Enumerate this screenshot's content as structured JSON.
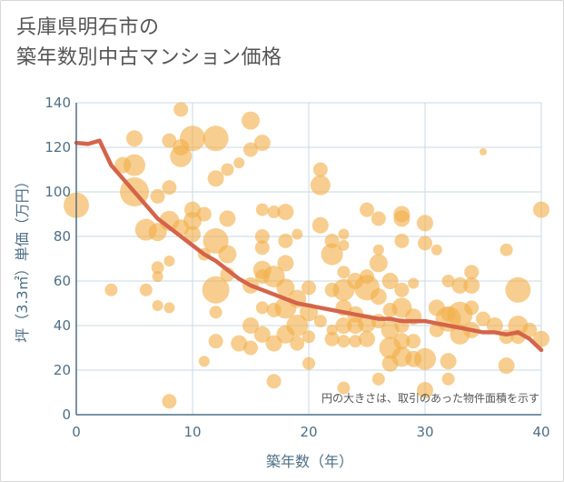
{
  "title": {
    "line1": "兵庫県明石市の",
    "line2": "築年数別中古マンション価格"
  },
  "chart_data": {
    "type": "scatter",
    "xlabel": "築年数（年）",
    "ylabel": "坪（3.3㎡）単価（万円）",
    "xlim": [
      0,
      40
    ],
    "ylim": [
      0,
      140
    ],
    "xticks": [
      "0",
      "10",
      "20",
      "30",
      "40"
    ],
    "yticks": [
      "0",
      "20",
      "40",
      "60",
      "80",
      "100",
      "120",
      "140"
    ],
    "grid": true,
    "annotation": "円の大きさは、取引のあった物件面積を示す",
    "colors": {
      "bubble": "#f2b04a",
      "line": "#d4644a",
      "axis": "#4e6f86",
      "grid": "#c9d8e6"
    },
    "trend_line": {
      "x": [
        0,
        1,
        2,
        3,
        4,
        5,
        6,
        7,
        8,
        9,
        10,
        11,
        12,
        13,
        14,
        15,
        16,
        17,
        18,
        19,
        20,
        21,
        22,
        23,
        24,
        25,
        26,
        27,
        28,
        29,
        30,
        31,
        32,
        33,
        34,
        35,
        36,
        37,
        38,
        39,
        40
      ],
      "y": [
        122,
        121.5,
        123,
        112,
        106,
        100,
        94,
        88,
        84,
        80,
        76,
        72,
        69,
        65,
        61,
        58,
        56,
        54,
        52,
        50,
        49,
        48,
        47,
        46,
        45,
        44,
        43,
        43,
        42,
        42,
        42,
        41,
        40,
        39,
        38,
        37,
        37,
        36,
        37,
        34,
        29
      ]
    },
    "points": [
      {
        "x": 0,
        "y": 94,
        "s": 14
      },
      {
        "x": 3,
        "y": 56,
        "s": 7
      },
      {
        "x": 4,
        "y": 112,
        "s": 9
      },
      {
        "x": 5,
        "y": 124,
        "s": 9
      },
      {
        "x": 5,
        "y": 112,
        "s": 12
      },
      {
        "x": 5,
        "y": 100,
        "s": 16
      },
      {
        "x": 6,
        "y": 56,
        "s": 7
      },
      {
        "x": 6,
        "y": 83,
        "s": 12
      },
      {
        "x": 7,
        "y": 98,
        "s": 8
      },
      {
        "x": 7,
        "y": 82,
        "s": 10
      },
      {
        "x": 7,
        "y": 66,
        "s": 7
      },
      {
        "x": 7,
        "y": 62,
        "s": 6
      },
      {
        "x": 7,
        "y": 49,
        "s": 6
      },
      {
        "x": 8,
        "y": 123,
        "s": 8
      },
      {
        "x": 8,
        "y": 102,
        "s": 8
      },
      {
        "x": 8,
        "y": 87,
        "s": 11
      },
      {
        "x": 8,
        "y": 69,
        "s": 6
      },
      {
        "x": 8,
        "y": 48,
        "s": 6
      },
      {
        "x": 8,
        "y": 6,
        "s": 8
      },
      {
        "x": 9,
        "y": 137,
        "s": 8
      },
      {
        "x": 9,
        "y": 120,
        "s": 9
      },
      {
        "x": 9,
        "y": 116,
        "s": 12
      },
      {
        "x": 9,
        "y": 84,
        "s": 9
      },
      {
        "x": 10,
        "y": 124,
        "s": 14
      },
      {
        "x": 10,
        "y": 92,
        "s": 9
      },
      {
        "x": 10,
        "y": 87,
        "s": 10
      },
      {
        "x": 10,
        "y": 81,
        "s": 9
      },
      {
        "x": 11,
        "y": 90,
        "s": 8
      },
      {
        "x": 11,
        "y": 72,
        "s": 7
      },
      {
        "x": 11,
        "y": 24,
        "s": 6
      },
      {
        "x": 12,
        "y": 124,
        "s": 14
      },
      {
        "x": 12,
        "y": 106,
        "s": 9
      },
      {
        "x": 12,
        "y": 78,
        "s": 14
      },
      {
        "x": 12,
        "y": 56,
        "s": 15
      },
      {
        "x": 12,
        "y": 46,
        "s": 7
      },
      {
        "x": 12,
        "y": 33,
        "s": 8
      },
      {
        "x": 13,
        "y": 110,
        "s": 7
      },
      {
        "x": 13,
        "y": 88,
        "s": 9
      },
      {
        "x": 13,
        "y": 72,
        "s": 10
      },
      {
        "x": 13,
        "y": 63,
        "s": 8
      },
      {
        "x": 14,
        "y": 113,
        "s": 6
      },
      {
        "x": 14,
        "y": 32,
        "s": 9
      },
      {
        "x": 15,
        "y": 132,
        "s": 10
      },
      {
        "x": 15,
        "y": 119,
        "s": 8
      },
      {
        "x": 15,
        "y": 58,
        "s": 9
      },
      {
        "x": 15,
        "y": 40,
        "s": 9
      },
      {
        "x": 15,
        "y": 30,
        "s": 8
      },
      {
        "x": 16,
        "y": 122,
        "s": 9
      },
      {
        "x": 16,
        "y": 92,
        "s": 7
      },
      {
        "x": 16,
        "y": 80,
        "s": 8
      },
      {
        "x": 16,
        "y": 75,
        "s": 8
      },
      {
        "x": 16,
        "y": 65,
        "s": 10
      },
      {
        "x": 16,
        "y": 62,
        "s": 8
      },
      {
        "x": 16,
        "y": 48,
        "s": 7
      },
      {
        "x": 16,
        "y": 36,
        "s": 9
      },
      {
        "x": 17,
        "y": 91,
        "s": 7
      },
      {
        "x": 17,
        "y": 62,
        "s": 12
      },
      {
        "x": 17,
        "y": 47,
        "s": 8
      },
      {
        "x": 17,
        "y": 32,
        "s": 9
      },
      {
        "x": 17,
        "y": 15,
        "s": 8
      },
      {
        "x": 18,
        "y": 91,
        "s": 9
      },
      {
        "x": 18,
        "y": 78,
        "s": 8
      },
      {
        "x": 18,
        "y": 68,
        "s": 9
      },
      {
        "x": 18,
        "y": 57,
        "s": 10
      },
      {
        "x": 18,
        "y": 48,
        "s": 12
      },
      {
        "x": 18,
        "y": 36,
        "s": 10
      },
      {
        "x": 19,
        "y": 81,
        "s": 6
      },
      {
        "x": 19,
        "y": 52,
        "s": 10
      },
      {
        "x": 19,
        "y": 40,
        "s": 12
      },
      {
        "x": 19,
        "y": 32,
        "s": 8
      },
      {
        "x": 20,
        "y": 57,
        "s": 8
      },
      {
        "x": 20,
        "y": 46,
        "s": 10
      },
      {
        "x": 20,
        "y": 35,
        "s": 7
      },
      {
        "x": 20,
        "y": 23,
        "s": 7
      },
      {
        "x": 21,
        "y": 110,
        "s": 8
      },
      {
        "x": 21,
        "y": 103,
        "s": 11
      },
      {
        "x": 21,
        "y": 85,
        "s": 9
      },
      {
        "x": 21,
        "y": 42,
        "s": 7
      },
      {
        "x": 22,
        "y": 78,
        "s": 8
      },
      {
        "x": 22,
        "y": 72,
        "s": 12
      },
      {
        "x": 22,
        "y": 56,
        "s": 8
      },
      {
        "x": 22,
        "y": 38,
        "s": 6
      },
      {
        "x": 22,
        "y": 34,
        "s": 8
      },
      {
        "x": 23,
        "y": 81,
        "s": 6
      },
      {
        "x": 23,
        "y": 76,
        "s": 6
      },
      {
        "x": 23,
        "y": 64,
        "s": 7
      },
      {
        "x": 23,
        "y": 56,
        "s": 12
      },
      {
        "x": 23,
        "y": 48,
        "s": 9
      },
      {
        "x": 23,
        "y": 40,
        "s": 9
      },
      {
        "x": 23,
        "y": 33,
        "s": 7
      },
      {
        "x": 23,
        "y": 12,
        "s": 7
      },
      {
        "x": 24,
        "y": 60,
        "s": 9
      },
      {
        "x": 24,
        "y": 45,
        "s": 9
      },
      {
        "x": 24,
        "y": 40,
        "s": 9
      },
      {
        "x": 24,
        "y": 33,
        "s": 7
      },
      {
        "x": 25,
        "y": 92,
        "s": 8
      },
      {
        "x": 25,
        "y": 62,
        "s": 8
      },
      {
        "x": 25,
        "y": 57,
        "s": 14
      },
      {
        "x": 25,
        "y": 41,
        "s": 10
      },
      {
        "x": 25,
        "y": 34,
        "s": 9
      },
      {
        "x": 26,
        "y": 88,
        "s": 8
      },
      {
        "x": 26,
        "y": 74,
        "s": 6
      },
      {
        "x": 26,
        "y": 68,
        "s": 10
      },
      {
        "x": 26,
        "y": 53,
        "s": 9
      },
      {
        "x": 26,
        "y": 42,
        "s": 8
      },
      {
        "x": 26,
        "y": 16,
        "s": 7
      },
      {
        "x": 27,
        "y": 60,
        "s": 9
      },
      {
        "x": 27,
        "y": 47,
        "s": 8
      },
      {
        "x": 27,
        "y": 38,
        "s": 10
      },
      {
        "x": 27,
        "y": 30,
        "s": 12
      },
      {
        "x": 27,
        "y": 23,
        "s": 9
      },
      {
        "x": 28,
        "y": 90,
        "s": 9
      },
      {
        "x": 28,
        "y": 88,
        "s": 9
      },
      {
        "x": 28,
        "y": 78,
        "s": 8
      },
      {
        "x": 28,
        "y": 56,
        "s": 8
      },
      {
        "x": 28,
        "y": 48,
        "s": 11
      },
      {
        "x": 28,
        "y": 40,
        "s": 8
      },
      {
        "x": 28,
        "y": 33,
        "s": 9
      },
      {
        "x": 28,
        "y": 26,
        "s": 11
      },
      {
        "x": 29,
        "y": 59,
        "s": 6
      },
      {
        "x": 29,
        "y": 44,
        "s": 9
      },
      {
        "x": 29,
        "y": 33,
        "s": 8
      },
      {
        "x": 29,
        "y": 25,
        "s": 9
      },
      {
        "x": 30,
        "y": 86,
        "s": 9
      },
      {
        "x": 30,
        "y": 77,
        "s": 8
      },
      {
        "x": 30,
        "y": 25,
        "s": 12
      },
      {
        "x": 30,
        "y": 11,
        "s": 9
      },
      {
        "x": 31,
        "y": 74,
        "s": 6
      },
      {
        "x": 31,
        "y": 48,
        "s": 9
      },
      {
        "x": 31,
        "y": 38,
        "s": 8
      },
      {
        "x": 32,
        "y": 60,
        "s": 7
      },
      {
        "x": 32,
        "y": 45,
        "s": 8
      },
      {
        "x": 32,
        "y": 43,
        "s": 14
      },
      {
        "x": 32,
        "y": 24,
        "s": 9
      },
      {
        "x": 32,
        "y": 16,
        "s": 7
      },
      {
        "x": 33,
        "y": 58,
        "s": 9
      },
      {
        "x": 33,
        "y": 45,
        "s": 14
      },
      {
        "x": 33,
        "y": 36,
        "s": 11
      },
      {
        "x": 34,
        "y": 64,
        "s": 8
      },
      {
        "x": 34,
        "y": 58,
        "s": 9
      },
      {
        "x": 34,
        "y": 48,
        "s": 8
      },
      {
        "x": 34,
        "y": 38,
        "s": 9
      },
      {
        "x": 35,
        "y": 118,
        "s": 4
      },
      {
        "x": 35,
        "y": 43,
        "s": 8
      },
      {
        "x": 36,
        "y": 40,
        "s": 9
      },
      {
        "x": 37,
        "y": 74,
        "s": 7
      },
      {
        "x": 37,
        "y": 35,
        "s": 8
      },
      {
        "x": 37,
        "y": 22,
        "s": 9
      },
      {
        "x": 38,
        "y": 56,
        "s": 14
      },
      {
        "x": 38,
        "y": 40,
        "s": 11
      },
      {
        "x": 38,
        "y": 35,
        "s": 8
      },
      {
        "x": 39,
        "y": 38,
        "s": 8
      },
      {
        "x": 40,
        "y": 92,
        "s": 9
      },
      {
        "x": 40,
        "y": 34,
        "s": 9
      }
    ]
  }
}
